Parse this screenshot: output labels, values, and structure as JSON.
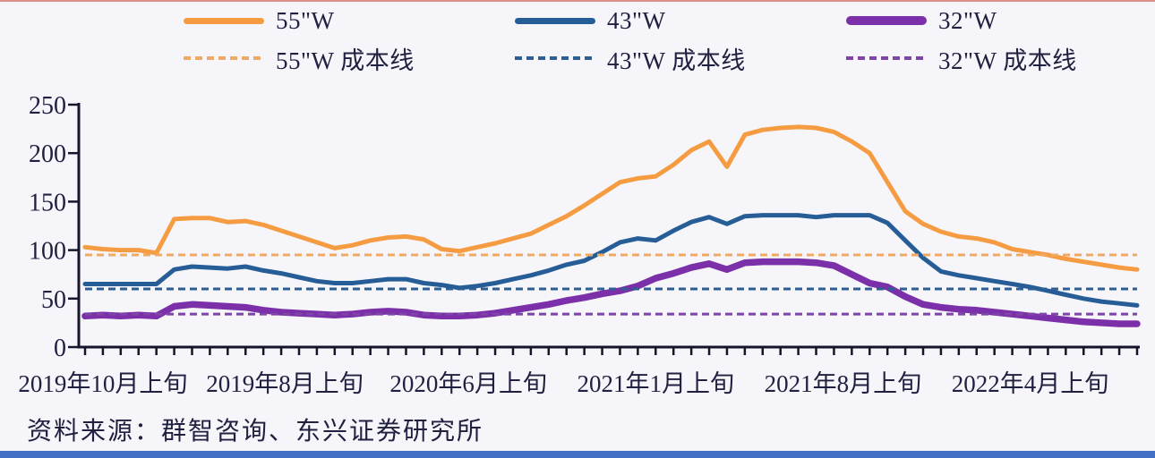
{
  "page": {
    "background": "#F6F6FA",
    "top_line_color": "#DC9089",
    "bottom_bar_color": "#4470C4"
  },
  "legend": {
    "items": [
      {
        "label": "55\"W",
        "color": "#F59C42",
        "style": "solid",
        "thick": false
      },
      {
        "label": "43\"W",
        "color": "#275D96",
        "style": "solid",
        "thick": false
      },
      {
        "label": "32\"W",
        "color": "#7B2FA8",
        "style": "solid",
        "thick": true
      },
      {
        "label": "55\"W 成本线",
        "color": "#F0A964",
        "style": "dashed",
        "thick": false
      },
      {
        "label": "43\"W 成本线",
        "color": "#2E5E94",
        "style": "dashed",
        "thick": false
      },
      {
        "label": "32\"W 成本线",
        "color": "#7E44A8",
        "style": "dashed",
        "thick": false
      }
    ]
  },
  "chart_data": {
    "type": "line",
    "title": "",
    "xlabel": "",
    "ylabel": "",
    "ylim": [
      0,
      250
    ],
    "yticks": [
      0,
      50,
      100,
      150,
      200,
      250
    ],
    "grid": false,
    "legend_position": "top",
    "x_labels": [
      "2019年10月上旬",
      "2019年8月上旬",
      "2020年6月上旬",
      "2021年1月上旬",
      "2021年8月上旬",
      "2022年4月上旬"
    ],
    "x_label_indices": [
      1,
      11.2,
      21.5,
      32,
      42.5,
      53
    ],
    "n_points": 60,
    "series": [
      {
        "name": "55\"W",
        "color": "#F59C42",
        "width": 5,
        "values": [
          103,
          101,
          100,
          100,
          97,
          132,
          133,
          133,
          129,
          130,
          126,
          120,
          114,
          108,
          102,
          105,
          110,
          113,
          114,
          111,
          101,
          99,
          103,
          107,
          112,
          117,
          126,
          135,
          146,
          158,
          170,
          174,
          176,
          188,
          203,
          212,
          186,
          219,
          224,
          226,
          227,
          226,
          222,
          212,
          200,
          170,
          140,
          127,
          119,
          114,
          112,
          108,
          101,
          98,
          95,
          91,
          88,
          85,
          82,
          80
        ]
      },
      {
        "name": "43\"W",
        "color": "#275D96",
        "width": 5,
        "values": [
          65,
          65,
          65,
          65,
          65,
          80,
          83,
          82,
          81,
          83,
          79,
          76,
          72,
          68,
          66,
          66,
          68,
          70,
          70,
          66,
          64,
          61,
          63,
          66,
          70,
          74,
          79,
          85,
          89,
          98,
          108,
          112,
          110,
          120,
          129,
          134,
          127,
          135,
          136,
          136,
          136,
          134,
          136,
          136,
          136,
          128,
          110,
          92,
          78,
          74,
          71,
          68,
          65,
          62,
          58,
          54,
          50,
          47,
          45,
          43
        ]
      },
      {
        "name": "32\"W",
        "color": "#7B2FA8",
        "width": 7.5,
        "values": [
          32,
          33,
          32,
          33,
          32,
          42,
          44,
          43,
          42,
          41,
          38,
          36,
          35,
          34,
          33,
          34,
          36,
          37,
          36,
          33,
          32,
          32,
          33,
          35,
          38,
          41,
          44,
          48,
          51,
          55,
          58,
          63,
          71,
          76,
          82,
          86,
          80,
          87,
          88,
          88,
          88,
          87,
          84,
          75,
          66,
          62,
          52,
          44,
          41,
          39,
          38,
          36,
          34,
          32,
          30,
          28,
          26,
          25,
          24,
          24
        ]
      }
    ],
    "cost_lines": [
      {
        "name": "55\"W 成本线",
        "value": 95,
        "color": "#F0A964"
      },
      {
        "name": "43\"W 成本线",
        "value": 60,
        "color": "#2E5E94"
      },
      {
        "name": "32\"W 成本线",
        "value": 34,
        "color": "#7E44A8"
      }
    ],
    "axis_color": "#15152B",
    "tick_label_color": "#202040"
  },
  "source": {
    "text": "资料来源：群智咨询、东兴证券研究所"
  }
}
